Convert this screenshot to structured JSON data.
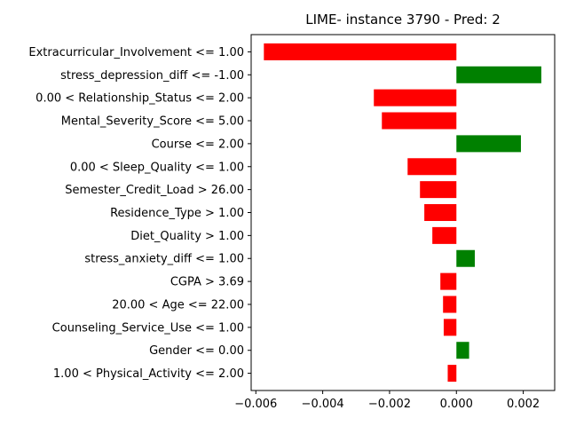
{
  "chart_data": {
    "type": "bar",
    "orientation": "horizontal",
    "title": "LIME- instance 3790 - Pred: 2",
    "xlabel": "",
    "ylabel": "",
    "xlim": [
      -0.00614,
      0.00294
    ],
    "xticks": [
      -0.006,
      -0.004,
      -0.002,
      0.0,
      0.002
    ],
    "xtick_labels": [
      "−0.006",
      "−0.004",
      "−0.002",
      "0.000",
      "0.002"
    ],
    "positive_color": "#008000",
    "negative_color": "#ff0000",
    "categories": [
      "Extracurricular_Involvement <= 1.00",
      "stress_depression_diff <= -1.00",
      "0.00 < Relationship_Status <= 2.00",
      "Mental_Severity_Score <= 5.00",
      "Course <= 2.00",
      "0.00 < Sleep_Quality <= 1.00",
      "Semester_Credit_Load > 26.00",
      "Residence_Type > 1.00",
      "Diet_Quality > 1.00",
      "stress_anxiety_diff <= 1.00",
      "CGPA > 3.69",
      "20.00 < Age <= 22.00",
      "Counseling_Service_Use <= 1.00",
      "Gender <= 0.00",
      "1.00 < Physical_Activity <= 2.00"
    ],
    "values": [
      -0.00576,
      0.00254,
      -0.00247,
      -0.00223,
      0.00193,
      -0.00146,
      -0.00109,
      -0.00096,
      -0.00072,
      0.00055,
      -0.00048,
      -0.0004,
      -0.00038,
      0.00038,
      -0.00026
    ]
  }
}
